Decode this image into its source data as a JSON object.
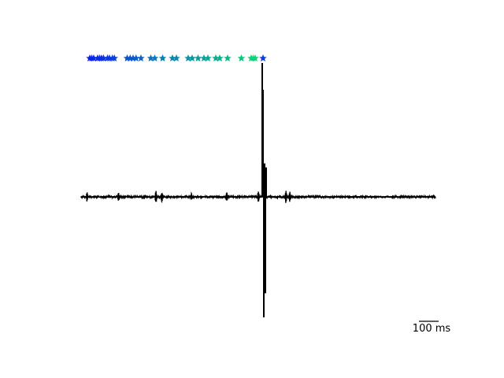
{
  "chart_data": {
    "type": "line",
    "title": "",
    "xlabel": "",
    "ylabel": "",
    "axes_visible": false,
    "grid": false,
    "trace": {
      "color": "#000000",
      "x_range_ms": [
        0,
        1800
      ],
      "baseline": 0,
      "noise_amplitude": 0.012,
      "bursts": [
        {
          "x_ms": 30,
          "amp": 0.04
        },
        {
          "x_ms": 190,
          "amp": 0.03
        },
        {
          "x_ms": 380,
          "amp": 0.05
        },
        {
          "x_ms": 410,
          "amp": 0.04
        },
        {
          "x_ms": 560,
          "amp": 0.03
        },
        {
          "x_ms": 740,
          "amp": 0.035
        },
        {
          "x_ms": 900,
          "amp": 0.05
        },
        {
          "x_ms": 1040,
          "amp": 0.05
        },
        {
          "x_ms": 1060,
          "amp": 0.04
        }
      ],
      "spikes": [
        {
          "x_ms": 920,
          "peak": 1.0
        },
        {
          "x_ms": 924,
          "peak": 0.8
        },
        {
          "x_ms": 928,
          "peak": -0.9
        },
        {
          "x_ms": 932,
          "peak": 0.25
        },
        {
          "x_ms": 936,
          "peak": -0.72
        },
        {
          "x_ms": 940,
          "peak": 0.22
        }
      ]
    },
    "markers": {
      "symbol": "star",
      "x_ms": [
        20,
        30,
        40,
        60,
        70,
        80,
        90,
        110,
        120,
        135,
        145,
        210,
        225,
        240,
        255,
        280,
        330,
        350,
        390,
        440,
        460,
        520,
        540,
        570,
        600,
        620,
        660,
        680,
        720,
        790,
        840,
        850,
        860,
        900
      ],
      "colors": [
        "#0a23e8",
        "#0a23e8",
        "#0a27e6",
        "#0a2ae4",
        "#0a2de2",
        "#0a30e0",
        "#0a32de",
        "#0a36dc",
        "#0a3ada",
        "#0a3ed8",
        "#0a42d6",
        "#0a52cc",
        "#0a55ca",
        "#0a58c8",
        "#0a5cc6",
        "#0a62c2",
        "#0a70bc",
        "#0a76b8",
        "#0a7cb4",
        "#0a86ae",
        "#0a8aaa",
        "#0a94a4",
        "#0a98a0",
        "#0a9c9c",
        "#0aa298",
        "#0aa694",
        "#0aac90",
        "#0ab08c",
        "#0ab888",
        "#0ac480",
        "#0ad07a",
        "#0ad478",
        "#0ad676",
        "#0a3ae8"
      ]
    },
    "scale_bar": {
      "length_ms": 100,
      "label": "100 ms"
    }
  }
}
